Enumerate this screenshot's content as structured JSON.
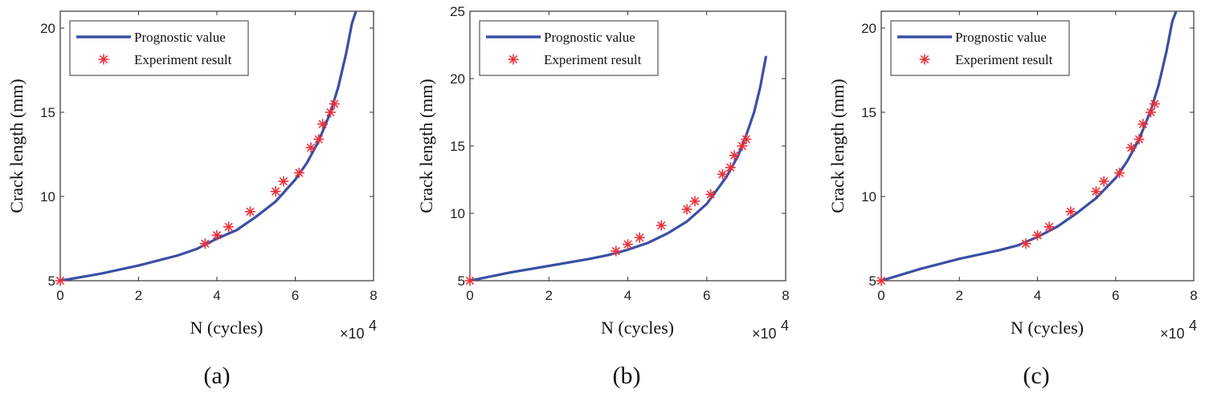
{
  "chart_data": [
    {
      "type": "line",
      "panel_label": "(a)",
      "xlabel": "N (cycles)",
      "ylabel": "Crack length (mm)",
      "x_multiplier": "×10",
      "x_multiplier_exp": "4",
      "xlim": [
        0,
        8
      ],
      "ylim": [
        5,
        21
      ],
      "xticks": [
        "0",
        "2",
        "4",
        "6",
        "8"
      ],
      "yticks": [
        "5",
        "10",
        "15",
        "20"
      ],
      "grid": false,
      "legend": "top-left",
      "series": [
        {
          "name": "Prognostic value",
          "color": "#3a4fa3",
          "style": "line",
          "x": [
            0,
            1,
            2,
            3,
            3.5,
            4,
            4.5,
            5,
            5.5,
            6,
            6.3,
            6.6,
            6.9,
            7.1,
            7.3,
            7.45,
            7.55
          ],
          "y": [
            5,
            5.4,
            5.9,
            6.5,
            6.9,
            7.5,
            8.0,
            8.8,
            9.7,
            11.0,
            12.0,
            13.3,
            15.0,
            16.5,
            18.5,
            20.3,
            21
          ]
        },
        {
          "name": "Experiment result",
          "color": "#e8323c",
          "style": "marker",
          "x": [
            0,
            3.7,
            4.0,
            4.3,
            4.85,
            5.5,
            5.7,
            6.1,
            6.4,
            6.6,
            6.7,
            6.9,
            7.0
          ],
          "y": [
            5,
            7.2,
            7.7,
            8.2,
            9.1,
            10.3,
            10.9,
            11.4,
            12.9,
            13.4,
            14.3,
            15.0,
            15.5
          ]
        }
      ]
    },
    {
      "type": "line",
      "panel_label": "(b)",
      "xlabel": "N (cycles)",
      "ylabel": "Crack length (mm)",
      "x_multiplier": "×10",
      "x_multiplier_exp": "4",
      "xlim": [
        0,
        8
      ],
      "ylim": [
        5,
        25
      ],
      "xticks": [
        "0",
        "2",
        "4",
        "6",
        "8"
      ],
      "yticks": [
        "5",
        "10",
        "15",
        "20",
        "25"
      ],
      "grid": false,
      "legend": "top-left",
      "series": [
        {
          "name": "Prognostic value",
          "color": "#3a4fa3",
          "style": "line",
          "x": [
            0,
            1,
            2,
            3,
            3.5,
            4,
            4.5,
            5,
            5.5,
            6,
            6.5,
            6.8,
            7.0,
            7.2,
            7.35,
            7.5
          ],
          "y": [
            5,
            5.6,
            6.1,
            6.6,
            6.9,
            7.3,
            7.8,
            8.5,
            9.4,
            10.7,
            12.7,
            14.3,
            15.8,
            17.5,
            19.3,
            21.6
          ]
        },
        {
          "name": "Experiment result",
          "color": "#e8323c",
          "style": "marker",
          "x": [
            0,
            3.7,
            4.0,
            4.3,
            4.85,
            5.5,
            5.7,
            6.1,
            6.4,
            6.6,
            6.7,
            6.9,
            7.0
          ],
          "y": [
            5,
            7.2,
            7.7,
            8.2,
            9.1,
            10.3,
            10.9,
            11.4,
            12.9,
            13.4,
            14.3,
            15.0,
            15.5
          ]
        }
      ]
    },
    {
      "type": "line",
      "panel_label": "(c)",
      "xlabel": "N (cycles)",
      "ylabel": "Crack length (mm)",
      "x_multiplier": "×10",
      "x_multiplier_exp": "4",
      "xlim": [
        0,
        8
      ],
      "ylim": [
        5,
        21
      ],
      "xticks": [
        "0",
        "2",
        "4",
        "6",
        "8"
      ],
      "yticks": [
        "5",
        "10",
        "15",
        "20"
      ],
      "grid": false,
      "legend": "top-left",
      "series": [
        {
          "name": "Prognostic value",
          "color": "#3a4fa3",
          "style": "line",
          "x": [
            0,
            1,
            2,
            3,
            3.5,
            4,
            4.5,
            5,
            5.5,
            6,
            6.3,
            6.6,
            6.9,
            7.1,
            7.3,
            7.45,
            7.55
          ],
          "y": [
            5,
            5.7,
            6.3,
            6.8,
            7.1,
            7.6,
            8.2,
            9.0,
            9.9,
            11.1,
            12.1,
            13.4,
            15.1,
            16.6,
            18.6,
            20.4,
            21
          ]
        },
        {
          "name": "Experiment result",
          "color": "#e8323c",
          "style": "marker",
          "x": [
            0,
            3.7,
            4.0,
            4.3,
            4.85,
            5.5,
            5.7,
            6.1,
            6.4,
            6.6,
            6.7,
            6.9,
            7.0
          ],
          "y": [
            5,
            7.2,
            7.7,
            8.2,
            9.1,
            10.3,
            10.9,
            11.4,
            12.9,
            13.4,
            14.3,
            15.0,
            15.5
          ]
        }
      ]
    }
  ]
}
